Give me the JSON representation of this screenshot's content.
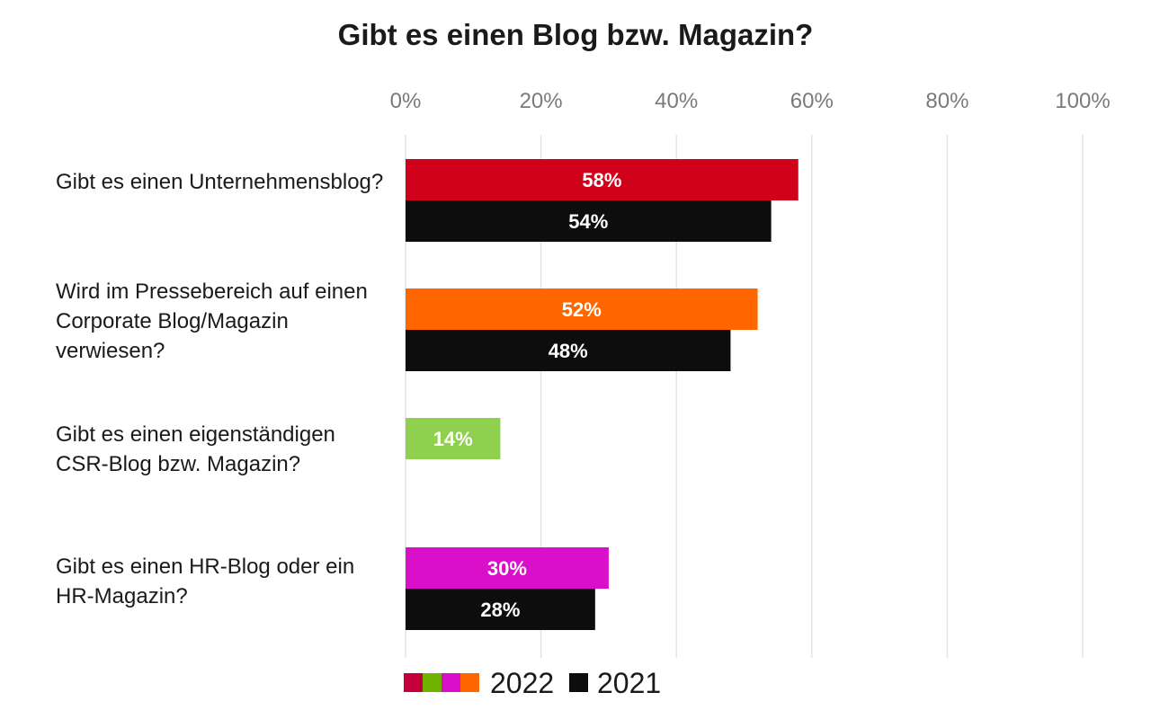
{
  "chart_data": {
    "type": "bar",
    "orientation": "horizontal",
    "title": "Gibt es einen Blog bzw. Magazin?",
    "categories": [
      "Gibt es einen Unternehmensblog?",
      "Wird im Pressebereich auf einen Corporate Blog/Magazin verwiesen?",
      "Gibt es einen eigenständigen CSR-Blog bzw. Magazin?",
      "Gibt es einen HR-Blog oder ein HR-Magazin?"
    ],
    "series": [
      {
        "name": "2022",
        "values": [
          58,
          52,
          14,
          30
        ],
        "labels": [
          "58%",
          "52%",
          "14%",
          "30%"
        ],
        "colors": [
          "#d0021b",
          "#ff6600",
          "#8fd14f",
          "#d90fc9"
        ]
      },
      {
        "name": "2021",
        "values": [
          54,
          48,
          null,
          28
        ],
        "labels": [
          "54%",
          "48%",
          "",
          "28%"
        ],
        "color": "#0d0d0d"
      }
    ],
    "xlim": [
      0,
      100
    ],
    "xticks": [
      "0%",
      "20%",
      "40%",
      "60%",
      "80%",
      "100%"
    ],
    "grid": true,
    "legend": {
      "placement": "bottom",
      "swatch_colors_2022": [
        "#c4003a",
        "#6fb300",
        "#d90fc9",
        "#ff6600"
      ],
      "swatch_color_2021": "#0d0d0d"
    }
  }
}
